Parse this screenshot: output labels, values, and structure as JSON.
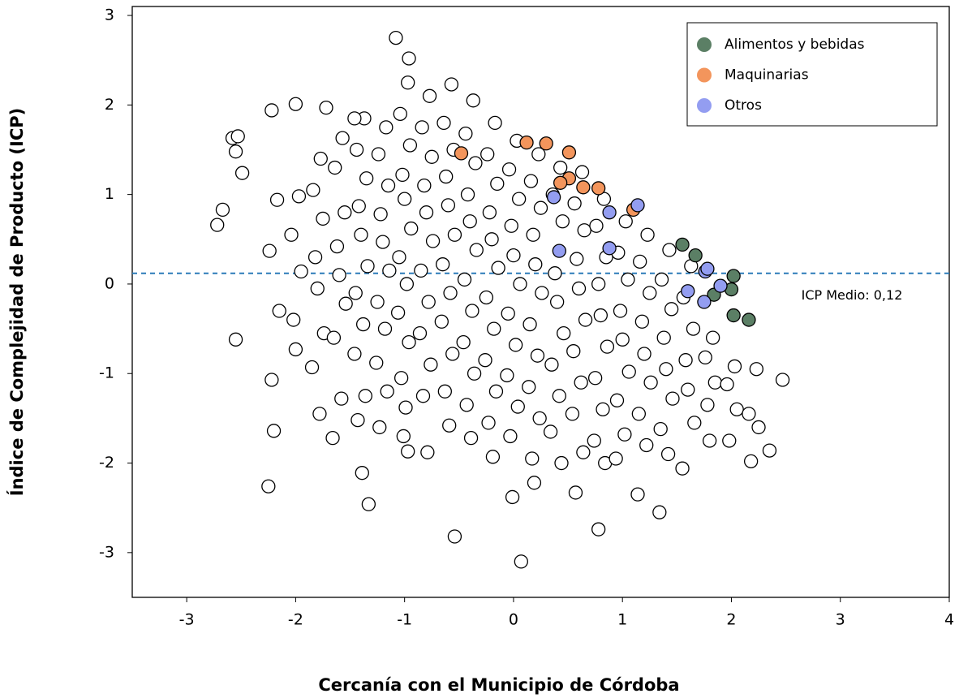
{
  "chart_data": {
    "type": "scatter",
    "x_label": "Cercanía con el Municipio de Córdoba",
    "y_label": "Índice de Complejidad de Producto (ICP)",
    "xlim": [
      -3.5,
      4
    ],
    "ylim": [
      -3.5,
      3.1
    ],
    "xticks": [
      -3,
      -2,
      -1,
      0,
      1,
      2,
      3,
      4
    ],
    "yticks": [
      -3,
      -2,
      -1,
      0,
      1,
      2,
      3
    ],
    "legend": "upper right",
    "mean_line": {
      "value": 0.12,
      "color": "#2b7bb9",
      "label": "ICP Medio: 0,12"
    },
    "series": [
      {
        "color": "#ffffff",
        "x": [
          -2.17,
          -2.24,
          -2.15,
          -2.22,
          -2.2,
          -1.97,
          -2.04,
          -1.95,
          -2.02,
          -2.0,
          -1.77,
          -1.84,
          -1.75,
          -1.82,
          -1.8,
          -1.74,
          -1.85,
          -1.78,
          -1.57,
          -1.64,
          -1.55,
          -1.62,
          -1.6,
          -1.54,
          -1.65,
          -1.58,
          -1.66,
          -1.37,
          -1.44,
          -1.35,
          -1.42,
          -1.4,
          -1.34,
          -1.45,
          -1.38,
          -1.46,
          -1.36,
          -1.43,
          -1.39,
          -1.17,
          -1.24,
          -1.15,
          -1.22,
          -1.2,
          -1.14,
          -1.25,
          -1.18,
          -1.26,
          -1.16,
          -1.23,
          -0.97,
          -1.04,
          -0.95,
          -1.02,
          -1.0,
          -0.94,
          -1.05,
          -0.98,
          -1.06,
          -0.96,
          -1.03,
          -0.99,
          -1.01,
          -0.97,
          -0.77,
          -0.84,
          -0.75,
          -0.82,
          -0.8,
          -0.74,
          -0.85,
          -0.78,
          -0.86,
          -0.76,
          -0.83,
          -0.79,
          -0.57,
          -0.64,
          -0.55,
          -0.62,
          -0.6,
          -0.54,
          -0.65,
          -0.58,
          -0.66,
          -0.56,
          -0.63,
          -0.59,
          -0.37,
          -0.44,
          -0.35,
          -0.42,
          -0.4,
          -0.34,
          -0.45,
          -0.38,
          -0.46,
          -0.36,
          -0.43,
          -0.39,
          -0.17,
          -0.24,
          -0.15,
          -0.22,
          -0.2,
          -0.14,
          -0.25,
          -0.18,
          -0.26,
          -0.16,
          -0.23,
          -0.19,
          0.03,
          -0.04,
          0.05,
          -0.02,
          0,
          0.06,
          -0.05,
          0.02,
          -0.06,
          0.04,
          -0.03,
          -0.01,
          0.23,
          0.16,
          0.25,
          0.18,
          0.2,
          0.26,
          0.15,
          0.22,
          0.14,
          0.24,
          0.17,
          0.19,
          0.43,
          0.36,
          0.45,
          0.38,
          0.4,
          0.46,
          0.35,
          0.42,
          0.34,
          0.44,
          0.63,
          0.56,
          0.65,
          0.58,
          0.6,
          0.66,
          0.55,
          0.62,
          0.54,
          0.64,
          0.57,
          0.83,
          0.76,
          0.85,
          0.78,
          0.8,
          0.86,
          0.75,
          0.82,
          0.74,
          0.84,
          1.03,
          0.96,
          1.05,
          0.98,
          1.0,
          1.06,
          0.95,
          1.02,
          0.94,
          1.23,
          1.16,
          1.25,
          1.18,
          1.2,
          1.26,
          1.15,
          1.22,
          1.14,
          1.43,
          1.36,
          1.45,
          1.38,
          1.4,
          1.46,
          1.35,
          1.42,
          1.34,
          1.63,
          1.56,
          1.65,
          1.58,
          1.6,
          1.66,
          1.55,
          1.83,
          1.76,
          1.85,
          1.78,
          1.8,
          2.03,
          1.96,
          2.05,
          1.98,
          2.23,
          2.16,
          2.25,
          2.18,
          -1.08,
          -0.96,
          -2.72,
          -2.67,
          -2.55,
          -2.25,
          -1.33,
          -0.54,
          0.07,
          2.47,
          2.35,
          0.78,
          -2.58,
          -2.53,
          -2.55,
          -2.49,
          -2.22,
          -2.0,
          -1.72,
          -1.46
        ],
        "values": [
          0.94,
          0.37,
          -0.3,
          -1.07,
          -1.64,
          0.98,
          0.55,
          0.14,
          -0.4,
          -0.73,
          1.4,
          1.05,
          0.73,
          0.3,
          -0.05,
          -0.55,
          -0.93,
          -1.45,
          1.63,
          1.3,
          0.8,
          0.42,
          0.1,
          -0.22,
          -0.6,
          -1.28,
          -1.72,
          1.85,
          1.5,
          1.18,
          0.87,
          0.55,
          0.2,
          -0.1,
          -0.45,
          -0.78,
          -1.25,
          -1.52,
          -2.11,
          1.75,
          1.45,
          1.1,
          0.78,
          0.47,
          0.15,
          -0.2,
          -0.5,
          -0.88,
          -1.2,
          -1.6,
          2.25,
          1.9,
          1.55,
          1.22,
          0.95,
          0.62,
          0.3,
          0.0,
          -0.32,
          -0.65,
          -1.05,
          -1.38,
          -1.7,
          -1.87,
          2.1,
          1.75,
          1.42,
          1.1,
          0.8,
          0.48,
          0.15,
          -0.2,
          -0.55,
          -0.9,
          -1.25,
          -1.88,
          2.23,
          1.8,
          1.5,
          1.2,
          0.88,
          0.55,
          0.22,
          -0.1,
          -0.42,
          -0.78,
          -1.2,
          -1.58,
          2.05,
          1.68,
          1.35,
          1.0,
          0.7,
          0.38,
          0.05,
          -0.3,
          -0.65,
          -1.0,
          -1.35,
          -1.72,
          1.8,
          1.45,
          1.12,
          0.8,
          0.5,
          0.18,
          -0.15,
          -0.5,
          -0.85,
          -1.2,
          -1.55,
          -1.93,
          1.6,
          1.28,
          0.95,
          0.65,
          0.32,
          0.0,
          -0.33,
          -0.68,
          -1.02,
          -1.37,
          -1.7,
          -2.38,
          1.45,
          1.15,
          0.85,
          0.55,
          0.22,
          -0.1,
          -0.45,
          -0.8,
          -1.15,
          -1.5,
          -1.95,
          -2.22,
          1.3,
          1.0,
          0.7,
          0.12,
          -0.2,
          -0.55,
          -0.9,
          -1.25,
          -1.65,
          -2.0,
          1.25,
          0.9,
          0.6,
          0.28,
          -0.05,
          -0.4,
          -0.75,
          -1.1,
          -1.45,
          -1.88,
          -2.33,
          0.95,
          0.65,
          0.3,
          0.0,
          -0.35,
          -0.7,
          -1.05,
          -1.4,
          -1.75,
          -2.0,
          0.7,
          0.35,
          0.05,
          -0.3,
          -0.62,
          -0.98,
          -1.3,
          -1.68,
          -1.95,
          0.55,
          0.25,
          -0.1,
          -0.42,
          -0.78,
          -1.1,
          -1.45,
          -1.8,
          -2.35,
          0.38,
          0.05,
          -0.28,
          -0.6,
          -0.95,
          -1.28,
          -1.62,
          -1.9,
          -2.55,
          0.2,
          -0.15,
          -0.5,
          -0.85,
          -1.18,
          -1.55,
          -2.06,
          -0.6,
          -0.82,
          -1.1,
          -1.35,
          -1.75,
          -0.92,
          -1.12,
          -1.4,
          -1.75,
          -0.95,
          -1.45,
          -1.6,
          -1.98,
          2.75,
          2.52,
          0.66,
          0.83,
          -0.62,
          -2.26,
          -2.46,
          -2.82,
          -3.1,
          -1.07,
          -1.86,
          -2.74,
          1.63,
          1.65,
          1.48,
          1.24,
          1.94,
          2.01,
          1.97,
          1.85
        ]
      },
      {
        "name": "Alimentos y bebidas",
        "color": "#5b7f65",
        "x": [
          1.55,
          1.67,
          2.02,
          2.0,
          1.84,
          2.02,
          2.16
        ],
        "values": [
          0.44,
          0.32,
          0.09,
          -0.06,
          -0.12,
          -0.35,
          -0.4
        ]
      },
      {
        "name": "Maquinarias",
        "color": "#f3955c",
        "x": [
          -0.48,
          0.12,
          0.3,
          0.51,
          0.51,
          0.43,
          0.64,
          0.78,
          1.1
        ],
        "values": [
          1.46,
          1.58,
          1.57,
          1.47,
          1.18,
          1.13,
          1.08,
          1.07,
          0.83
        ]
      },
      {
        "name": "Otros",
        "color": "#939df1",
        "x": [
          0.37,
          0.42,
          0.88,
          0.88,
          1.14,
          1.6,
          1.76,
          1.78,
          1.9,
          1.75
        ],
        "values": [
          0.97,
          0.37,
          0.8,
          0.4,
          0.88,
          -0.08,
          0.14,
          0.17,
          -0.02,
          -0.2
        ]
      }
    ]
  }
}
